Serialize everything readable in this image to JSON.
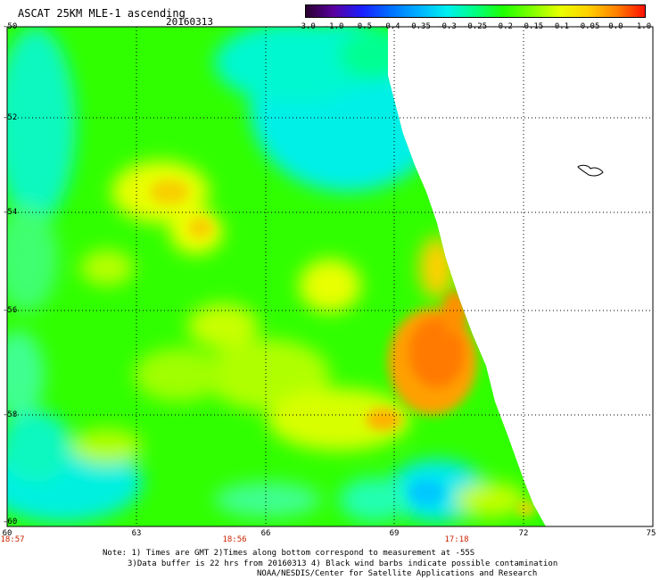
{
  "header": {
    "title": "ASCAT 25KM MLE-1 ascending",
    "date": "20160313"
  },
  "colorbar": {
    "labels": [
      "-3.0",
      "-1.0",
      "-0.5",
      "-0.4",
      "-0.35",
      "-0.3",
      "-0.25",
      "-0.2",
      "-0.15",
      "-0.1",
      "-0.05",
      "0.0",
      "1.0"
    ],
    "colors": [
      "#2a0030",
      "#5a00a0",
      "#1a20ff",
      "#0070ff",
      "#00b0ff",
      "#00f0f0",
      "#00ff80",
      "#20ff00",
      "#80ff00",
      "#e8ff00",
      "#ffd000",
      "#ff8000",
      "#ff1000"
    ]
  },
  "map": {
    "lat_labels": [
      "-50",
      "-52",
      "-54",
      "-56",
      "-58",
      "-60"
    ],
    "lon_labels": [
      "60",
      "63",
      "66",
      "69",
      "72",
      "75"
    ],
    "time_labels": [
      "18:57",
      "18:56",
      "17:18"
    ],
    "colors": {
      "background": "#ffffff",
      "field_base": "#30ff00",
      "cyan": "#00f0e8",
      "teal": "#20ffb0",
      "yellow": "#f0ff00",
      "orange": "#ff9a00",
      "dark_orange": "#ff7a00",
      "grid": "#000000",
      "time_label": "#cc2200"
    }
  },
  "notes": [
    "Note: 1) Times are GMT 2)Times along bottom correspond to measurement at -55S",
    "3)Data buffer is 22 hrs from 20160313 4) Black wind barbs indicate possible contamination",
    "NOAA/NESDIS/Center for Satellite Applications and Research"
  ]
}
